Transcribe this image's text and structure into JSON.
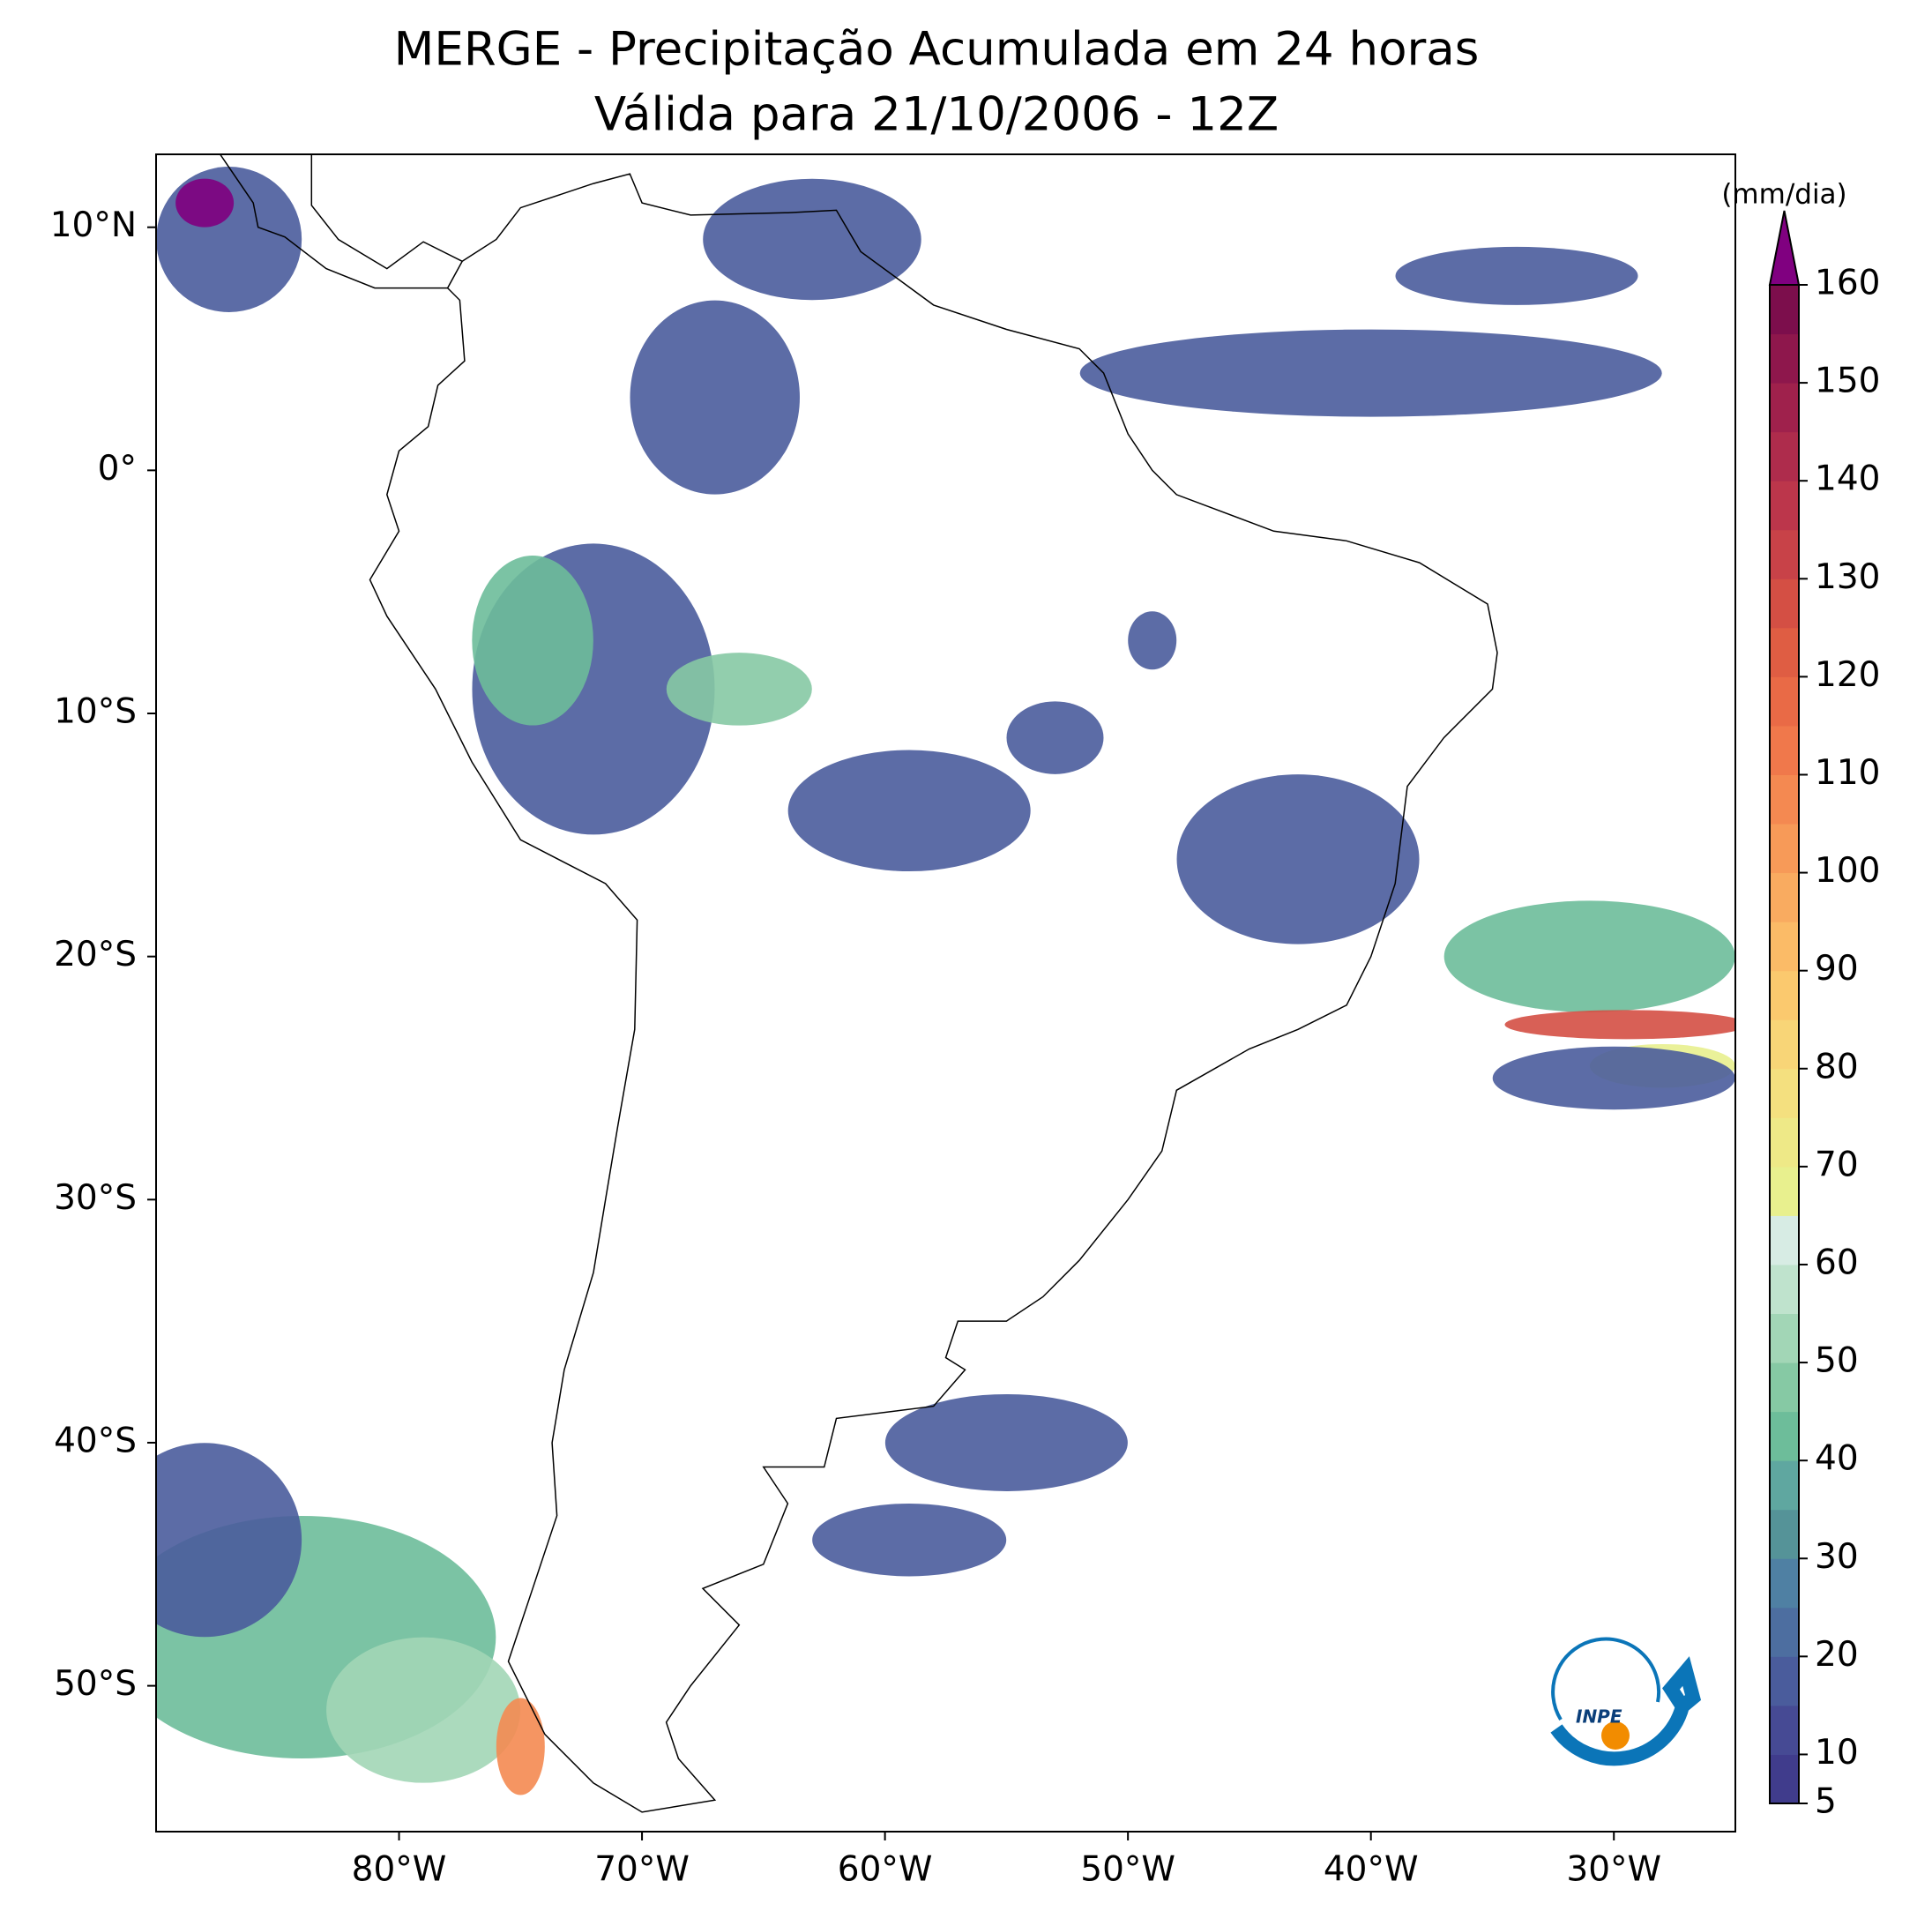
{
  "title": [
    "MERGE - Precipitação Acumulada em 24 horas",
    "Válida para 21/10/2006 - 12Z"
  ],
  "map": {
    "xlim": [
      -90,
      -25
    ],
    "ylim": [
      -56,
      13
    ],
    "xticks": [
      {
        "value": -80,
        "label": "80°W"
      },
      {
        "value": -70,
        "label": "70°W"
      },
      {
        "value": -60,
        "label": "60°W"
      },
      {
        "value": -50,
        "label": "50°W"
      },
      {
        "value": -40,
        "label": "40°W"
      },
      {
        "value": -30,
        "label": "30°W"
      }
    ],
    "yticks": [
      {
        "value": 10,
        "label": "10°N"
      },
      {
        "value": 0,
        "label": "0°"
      },
      {
        "value": -10,
        "label": "10°S"
      },
      {
        "value": -20,
        "label": "20°S"
      },
      {
        "value": -30,
        "label": "30°S"
      },
      {
        "value": -40,
        "label": "40°S"
      },
      {
        "value": -50,
        "label": "50°S"
      }
    ]
  },
  "colorbar": {
    "label": "(mm/dia)",
    "levels": [
      5,
      10,
      15,
      20,
      25,
      30,
      35,
      40,
      45,
      50,
      55,
      60,
      65,
      70,
      75,
      80,
      85,
      90,
      95,
      100,
      105,
      110,
      115,
      120,
      125,
      130,
      135,
      140,
      145,
      150,
      155,
      160
    ],
    "colors": [
      "#403c8c",
      "#464a94",
      "#4a5c9c",
      "#4d6ea0",
      "#4f80a3",
      "#559398",
      "#5fa7a0",
      "#6dbd9a",
      "#86c9a4",
      "#a2d6b6",
      "#bfe3cd",
      "#d7ece4",
      "#e8f08e",
      "#eee987",
      "#f4e07f",
      "#f8d577",
      "#fbc96e",
      "#fbbb67",
      "#f9ab60",
      "#f79a58",
      "#f48951",
      "#f0784b",
      "#e96a46",
      "#df5d43",
      "#d44f44",
      "#c84248",
      "#bc364b",
      "#ae2c4c",
      "#9f214c",
      "#8e174c",
      "#7c0e4c"
    ],
    "over_color": "#800080",
    "ticks": [
      5,
      10,
      20,
      30,
      40,
      50,
      60,
      70,
      80,
      90,
      100,
      110,
      120,
      130,
      140,
      150,
      160
    ]
  },
  "logo": "INPE"
}
